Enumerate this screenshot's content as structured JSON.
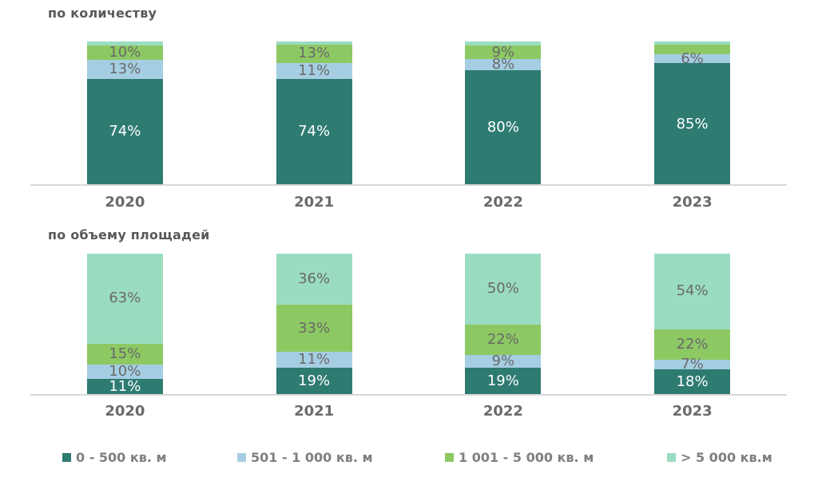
{
  "colors": {
    "teal": "#2E7B72",
    "blue": "#A6CEE3",
    "green": "#8DC963",
    "mint": "#9ADCC0",
    "axis_line": "#D9D9D9",
    "label_dark": "#6a6a6a",
    "label_light": "#FFFFFF",
    "title_gray": "#595959",
    "legend_gray": "#7f7f7f"
  },
  "chart_data": [
    {
      "type": "bar",
      "stacked": true,
      "units": "percent",
      "title": "по количеству",
      "categories": [
        "2020",
        "2021",
        "2022",
        "2023"
      ],
      "ylim": [
        0,
        100
      ],
      "grid": false,
      "series": [
        {
          "name": "0 - 500 кв. м",
          "color": "#2E7B72",
          "label_color": "#FFFFFF",
          "values": [
            74,
            74,
            80,
            85
          ],
          "labels": [
            "74%",
            "74%",
            "80%",
            "85%"
          ]
        },
        {
          "name": "501 - 1 000 кв. м",
          "color": "#A6CEE3",
          "label_color": "#6a6a6a",
          "values": [
            13,
            11,
            8,
            6
          ],
          "labels": [
            "13%",
            "11%",
            "8%",
            "6%"
          ]
        },
        {
          "name": "1 001 - 5 000 кв. м",
          "color": "#8DC963",
          "label_color": "#6a6a6a",
          "values": [
            10,
            13,
            9,
            7
          ],
          "labels": [
            "10%",
            "13%",
            "9%",
            ""
          ]
        },
        {
          "name": "> 5 000 кв.м",
          "color": "#9ADCC0",
          "label_color": "#6a6a6a",
          "values": [
            3,
            2,
            3,
            2
          ],
          "labels": [
            "",
            "",
            "",
            ""
          ]
        }
      ]
    },
    {
      "type": "bar",
      "stacked": true,
      "units": "percent",
      "title": "по объему площадей",
      "categories": [
        "2020",
        "2021",
        "2022",
        "2023"
      ],
      "ylim": [
        0,
        100
      ],
      "grid": false,
      "series": [
        {
          "name": "0 - 500 кв. м",
          "color": "#2E7B72",
          "label_color": "#FFFFFF",
          "values": [
            11,
            19,
            19,
            18
          ],
          "labels": [
            "11%",
            "19%",
            "19%",
            "18%"
          ]
        },
        {
          "name": "501 - 1 000 кв. м",
          "color": "#A6CEE3",
          "label_color": "#6a6a6a",
          "values": [
            10,
            11,
            9,
            7
          ],
          "labels": [
            "10%",
            "11%",
            "9%",
            "7%"
          ]
        },
        {
          "name": "1 001 - 5 000 кв. м",
          "color": "#8DC963",
          "label_color": "#6a6a6a",
          "values": [
            15,
            33,
            22,
            22
          ],
          "labels": [
            "15%",
            "33%",
            "22%",
            "22%"
          ]
        },
        {
          "name": "> 5 000 кв.м",
          "color": "#9ADCC0",
          "label_color": "#6a6a6a",
          "values": [
            63,
            36,
            50,
            54
          ],
          "labels": [
            "63%",
            "36%",
            "50%",
            "54%"
          ]
        }
      ]
    }
  ],
  "legend": {
    "position": "bottom",
    "items": [
      {
        "label": "0 - 500 кв. м",
        "color": "#2E7B72"
      },
      {
        "label": "501 - 1 000 кв. м",
        "color": "#A6CEE3"
      },
      {
        "label": "1 001 - 5 000 кв. м",
        "color": "#8DC963"
      },
      {
        "label": "> 5 000 кв.м",
        "color": "#9ADCC0"
      }
    ]
  }
}
